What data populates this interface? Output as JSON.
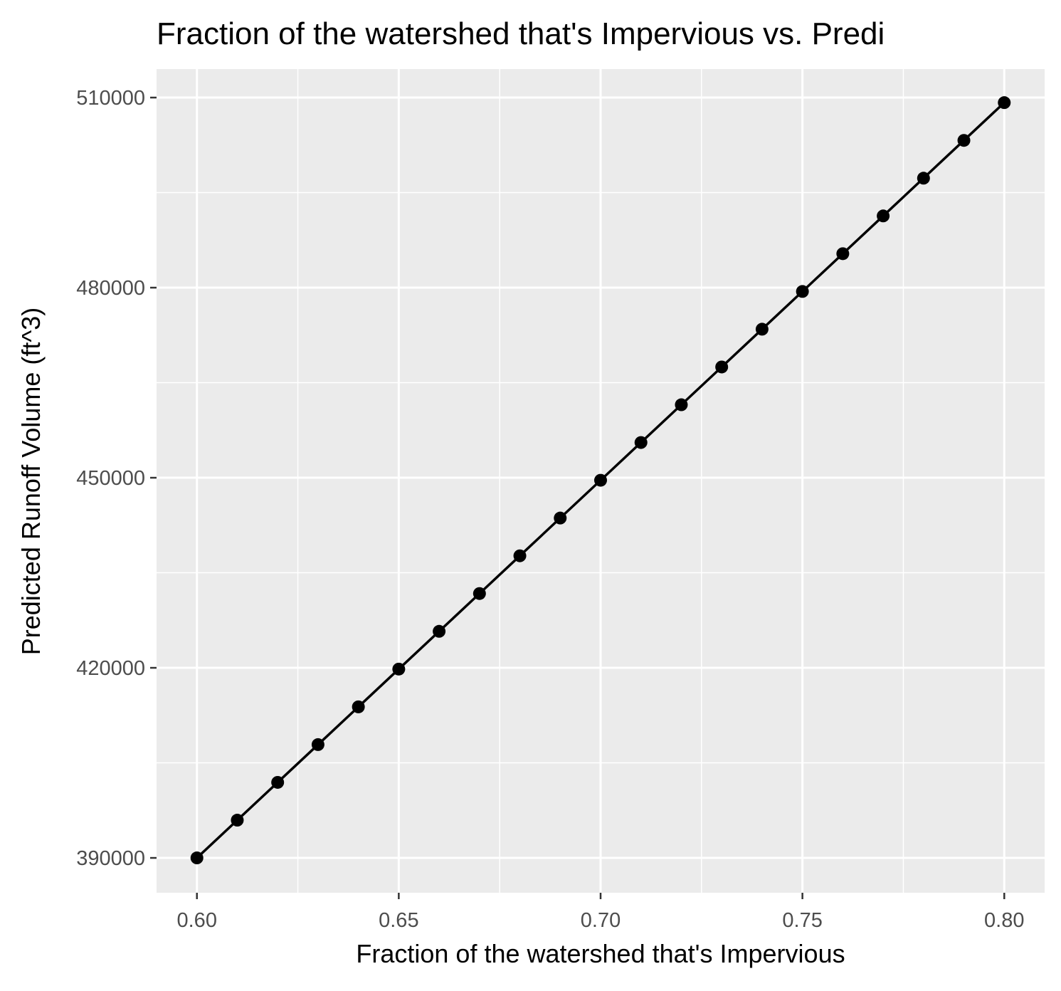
{
  "colors": {
    "panel_background": "#ebebeb",
    "grid_major": "#ffffff",
    "grid_minor": "#ffffff",
    "series": "#000000",
    "tick_mark": "#333333",
    "tick_label": "#4d4d4d"
  },
  "chart_data": {
    "type": "line",
    "title": "Fraction of the watershed that's Impervious vs. Predi",
    "xlabel": "Fraction of the watershed that's Impervious",
    "ylabel": "Predicted Runoff Volume (ft^3)",
    "grid": true,
    "legend": "none",
    "markers": true,
    "xlim": [
      0.59,
      0.81
    ],
    "ylim": [
      384500,
      514500
    ],
    "x_ticks": [
      0.6,
      0.65,
      0.7,
      0.75,
      0.8
    ],
    "x_tick_labels": [
      "0.60",
      "0.65",
      "0.70",
      "0.75",
      "0.80"
    ],
    "y_ticks": [
      390000,
      420000,
      450000,
      480000,
      510000
    ],
    "y_tick_labels": [
      "390000",
      "420000",
      "450000",
      "480000",
      "510000"
    ],
    "series": [
      {
        "x": [
          0.6,
          0.61,
          0.62,
          0.63,
          0.64,
          0.65,
          0.66,
          0.67,
          0.68,
          0.69,
          0.7,
          0.71,
          0.72,
          0.73,
          0.74,
          0.75,
          0.76,
          0.77,
          0.78,
          0.79,
          0.8
        ],
        "y": [
          390000,
          395960,
          401920,
          407880,
          413840,
          419800,
          425760,
          431720,
          437680,
          443640,
          449600,
          455560,
          461520,
          467480,
          473440,
          479400,
          485360,
          491320,
          497280,
          503240,
          509200
        ]
      }
    ]
  }
}
